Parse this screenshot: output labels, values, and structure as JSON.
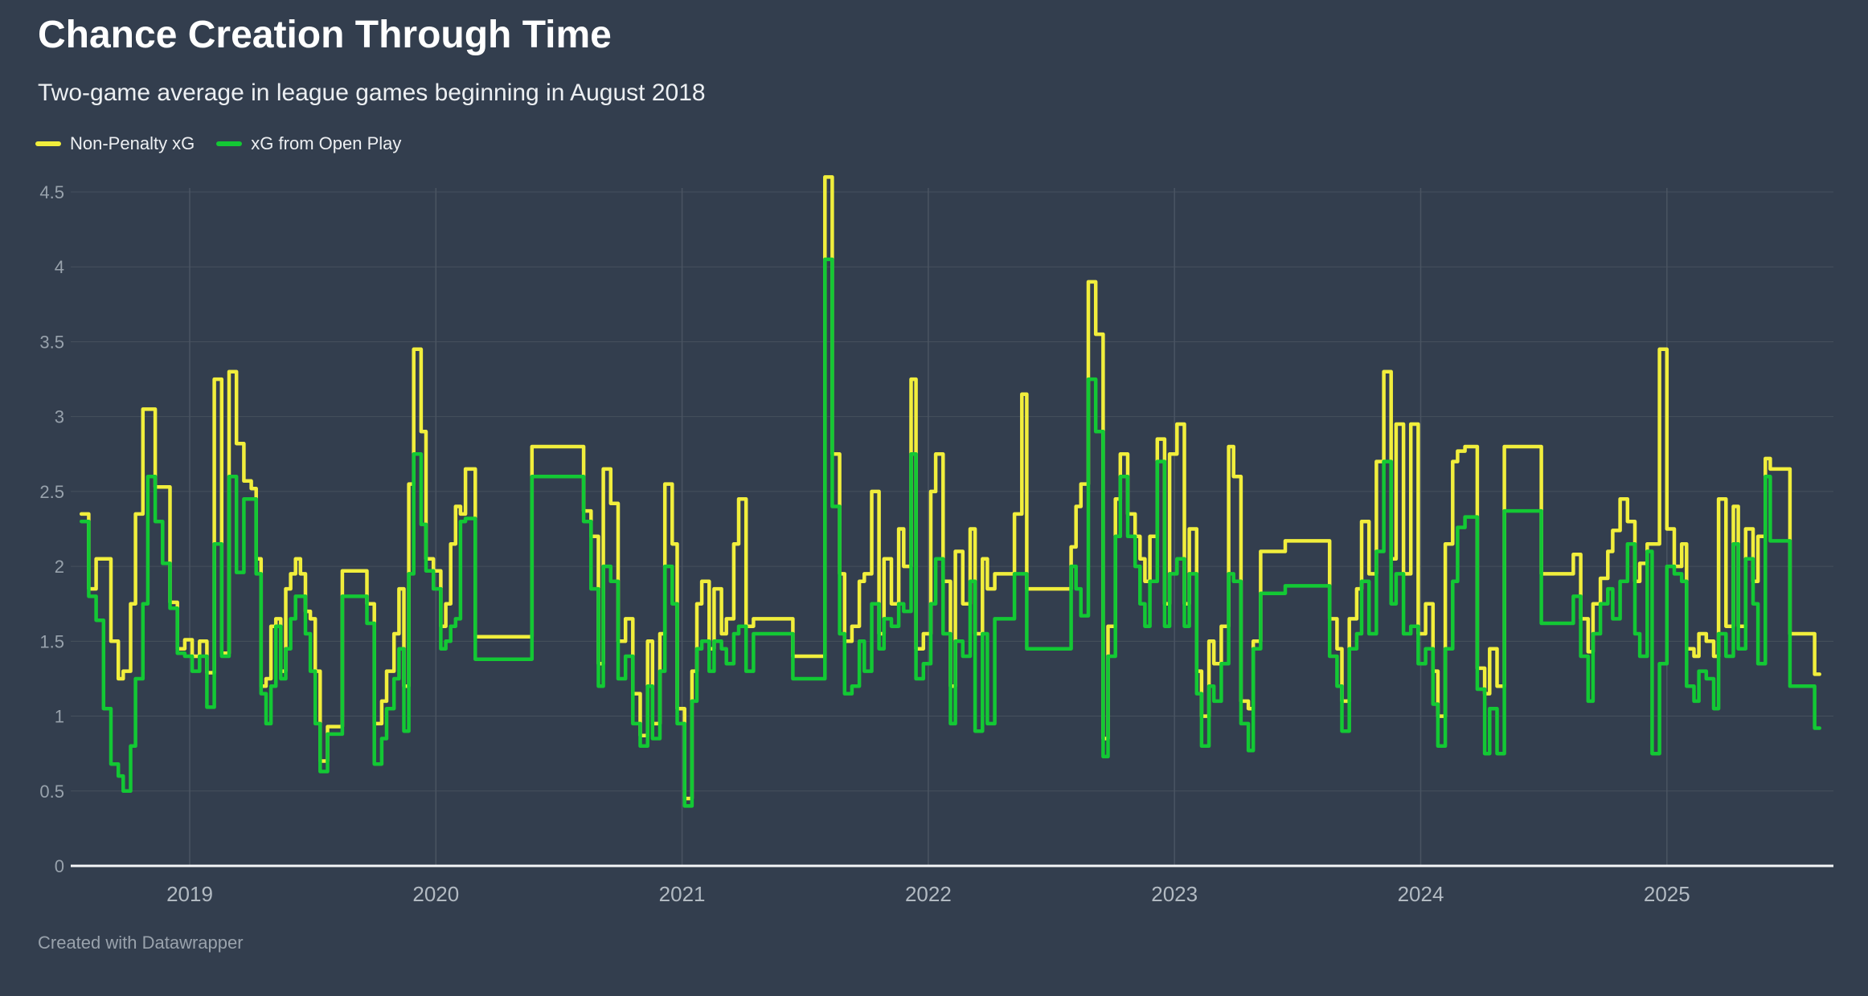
{
  "header": {
    "title": "Chance Creation Through Time",
    "subtitle": "Two-game average in league games beginning in August 2018"
  },
  "legend": {
    "position": "top-left",
    "items": [
      {
        "label": "Non-Penalty xG",
        "color": "#F1EE3C"
      },
      {
        "label": "xG from Open Play",
        "color": "#13C834"
      }
    ]
  },
  "footer": {
    "credit": "Created with Datawrapper"
  },
  "colors": {
    "background": "#333E4E",
    "gridline": "#46505D",
    "year_gridline": "#4A5462",
    "axis_line": "#F5F6F8",
    "y_tick_label": "#98A2AC",
    "x_tick_label": "#B2BAC2",
    "title": "#FFFFFF",
    "subtitle": "#ECEFF2"
  },
  "chart_data": {
    "type": "line",
    "step": true,
    "title": "Chance Creation Through Time",
    "subtitle": "Two-game average in league games beginning in August 2018",
    "xlabel": "",
    "ylabel": "",
    "grid": true,
    "legend_position": "top-left",
    "x_axis": {
      "range": [
        2018.55,
        2025.72
      ],
      "ticks": [
        2019,
        2020,
        2021,
        2022,
        2023,
        2024,
        2025
      ]
    },
    "y_axis": {
      "range": [
        0,
        4.5
      ],
      "ticks": [
        {
          "value": 0,
          "label": "0"
        },
        {
          "value": 0.5,
          "label": "0.5"
        },
        {
          "value": 1,
          "label": "1"
        },
        {
          "value": 1.5,
          "label": "1.5"
        },
        {
          "value": 2,
          "label": "2"
        },
        {
          "value": 2.5,
          "label": "2.5"
        },
        {
          "value": 3,
          "label": "3"
        },
        {
          "value": 3.5,
          "label": "3.5"
        },
        {
          "value": 4,
          "label": "4"
        },
        {
          "value": 4.5,
          "label": "4.5"
        }
      ]
    },
    "x_end": 2025.62,
    "series": [
      {
        "name": "Non-Penalty xG",
        "color": "#F1EE3C",
        "key": 1
      },
      {
        "name": "xG from Open Play",
        "color": "#13C834",
        "key": 2
      }
    ],
    "points_format": [
      "x_decimal_year",
      "non_penalty_xg",
      "xg_from_open_play"
    ],
    "points": [
      [
        2018.56,
        2.35,
        2.3
      ],
      [
        2018.59,
        1.85,
        1.8
      ],
      [
        2018.62,
        2.05,
        1.64
      ],
      [
        2018.65,
        2.05,
        1.05
      ],
      [
        2018.68,
        1.5,
        0.68
      ],
      [
        2018.71,
        1.25,
        0.6
      ],
      [
        2018.73,
        1.3,
        0.5
      ],
      [
        2018.76,
        1.75,
        0.8
      ],
      [
        2018.78,
        2.35,
        1.25
      ],
      [
        2018.81,
        3.05,
        1.75
      ],
      [
        2018.83,
        3.05,
        2.6
      ],
      [
        2018.86,
        2.53,
        2.3
      ],
      [
        2018.89,
        2.53,
        2.02
      ],
      [
        2018.92,
        1.76,
        1.72
      ],
      [
        2018.95,
        1.45,
        1.42
      ],
      [
        2018.98,
        1.51,
        1.4
      ],
      [
        2019.01,
        1.4,
        1.3
      ],
      [
        2019.04,
        1.5,
        1.4
      ],
      [
        2019.07,
        1.29,
        1.06
      ],
      [
        2019.1,
        3.25,
        2.15
      ],
      [
        2019.13,
        1.42,
        1.4
      ],
      [
        2019.16,
        3.3,
        2.6
      ],
      [
        2019.19,
        2.82,
        1.96
      ],
      [
        2019.22,
        2.57,
        2.45
      ],
      [
        2019.25,
        2.52,
        2.45
      ],
      [
        2019.27,
        2.05,
        1.95
      ],
      [
        2019.29,
        1.2,
        1.15
      ],
      [
        2019.31,
        1.25,
        0.95
      ],
      [
        2019.33,
        1.6,
        1.2
      ],
      [
        2019.35,
        1.65,
        1.6
      ],
      [
        2019.37,
        1.3,
        1.25
      ],
      [
        2019.39,
        1.85,
        1.45
      ],
      [
        2019.41,
        1.95,
        1.65
      ],
      [
        2019.43,
        2.05,
        1.8
      ],
      [
        2019.45,
        1.95,
        1.8
      ],
      [
        2019.47,
        1.7,
        1.55
      ],
      [
        2019.49,
        1.65,
        1.3
      ],
      [
        2019.51,
        1.3,
        0.95
      ],
      [
        2019.53,
        0.7,
        0.63
      ],
      [
        2019.56,
        0.93,
        0.88
      ],
      [
        2019.62,
        1.97,
        1.8
      ],
      [
        2019.72,
        1.75,
        1.62
      ],
      [
        2019.75,
        0.95,
        0.68
      ],
      [
        2019.78,
        1.1,
        0.85
      ],
      [
        2019.8,
        1.3,
        1.05
      ],
      [
        2019.83,
        1.55,
        1.25
      ],
      [
        2019.85,
        1.85,
        1.45
      ],
      [
        2019.87,
        1.2,
        0.9
      ],
      [
        2019.89,
        2.55,
        1.95
      ],
      [
        2019.91,
        3.45,
        2.75
      ],
      [
        2019.94,
        2.9,
        2.28
      ],
      [
        2019.96,
        2.05,
        1.97
      ],
      [
        2019.99,
        1.97,
        1.85
      ],
      [
        2020.02,
        1.6,
        1.45
      ],
      [
        2020.04,
        1.75,
        1.5
      ],
      [
        2020.06,
        2.15,
        1.6
      ],
      [
        2020.08,
        2.4,
        1.65
      ],
      [
        2020.1,
        2.35,
        2.3
      ],
      [
        2020.12,
        2.65,
        2.32
      ],
      [
        2020.16,
        1.53,
        1.38
      ],
      [
        2020.39,
        2.8,
        2.6
      ],
      [
        2020.6,
        2.37,
        2.3
      ],
      [
        2020.63,
        2.2,
        1.85
      ],
      [
        2020.66,
        1.35,
        1.2
      ],
      [
        2020.68,
        2.65,
        2.0
      ],
      [
        2020.71,
        2.42,
        1.9
      ],
      [
        2020.74,
        1.5,
        1.25
      ],
      [
        2020.77,
        1.65,
        1.4
      ],
      [
        2020.8,
        1.15,
        0.95
      ],
      [
        2020.83,
        0.87,
        0.8
      ],
      [
        2020.86,
        1.5,
        1.2
      ],
      [
        2020.88,
        0.95,
        0.85
      ],
      [
        2020.91,
        1.55,
        1.3
      ],
      [
        2020.93,
        2.55,
        2.0
      ],
      [
        2020.96,
        2.15,
        1.75
      ],
      [
        2020.98,
        1.05,
        0.95
      ],
      [
        2021.01,
        0.45,
        0.4
      ],
      [
        2021.04,
        1.3,
        1.1
      ],
      [
        2021.06,
        1.75,
        1.45
      ],
      [
        2021.08,
        1.9,
        1.5
      ],
      [
        2021.11,
        1.45,
        1.3
      ],
      [
        2021.13,
        1.85,
        1.5
      ],
      [
        2021.16,
        1.55,
        1.45
      ],
      [
        2021.18,
        1.65,
        1.35
      ],
      [
        2021.21,
        2.15,
        1.55
      ],
      [
        2021.23,
        2.45,
        1.6
      ],
      [
        2021.26,
        1.6,
        1.3
      ],
      [
        2021.29,
        1.65,
        1.55
      ],
      [
        2021.45,
        1.4,
        1.25
      ],
      [
        2021.58,
        4.6,
        4.05
      ],
      [
        2021.61,
        2.75,
        2.4
      ],
      [
        2021.64,
        1.95,
        1.55
      ],
      [
        2021.66,
        1.5,
        1.15
      ],
      [
        2021.69,
        1.6,
        1.2
      ],
      [
        2021.72,
        1.9,
        1.5
      ],
      [
        2021.74,
        1.95,
        1.3
      ],
      [
        2021.77,
        2.5,
        1.75
      ],
      [
        2021.8,
        1.55,
        1.45
      ],
      [
        2021.82,
        2.05,
        1.65
      ],
      [
        2021.85,
        1.75,
        1.6
      ],
      [
        2021.88,
        2.25,
        1.75
      ],
      [
        2021.9,
        2.0,
        1.7
      ],
      [
        2021.93,
        3.25,
        2.75
      ],
      [
        2021.95,
        1.45,
        1.25
      ],
      [
        2021.98,
        1.55,
        1.35
      ],
      [
        2022.01,
        2.5,
        1.75
      ],
      [
        2022.03,
        2.75,
        2.05
      ],
      [
        2022.06,
        1.9,
        1.55
      ],
      [
        2022.09,
        1.2,
        0.95
      ],
      [
        2022.11,
        2.1,
        1.5
      ],
      [
        2022.14,
        1.75,
        1.4
      ],
      [
        2022.17,
        2.25,
        1.9
      ],
      [
        2022.19,
        1.55,
        0.9
      ],
      [
        2022.22,
        2.05,
        1.55
      ],
      [
        2022.24,
        1.85,
        0.95
      ],
      [
        2022.27,
        1.95,
        1.65
      ],
      [
        2022.35,
        2.35,
        1.95
      ],
      [
        2022.38,
        3.15,
        1.95
      ],
      [
        2022.4,
        1.85,
        1.45
      ],
      [
        2022.58,
        2.13,
        2.0
      ],
      [
        2022.6,
        2.4,
        1.85
      ],
      [
        2022.62,
        2.55,
        1.67
      ],
      [
        2022.65,
        3.9,
        3.25
      ],
      [
        2022.68,
        3.55,
        2.9
      ],
      [
        2022.71,
        0.85,
        0.73
      ],
      [
        2022.73,
        1.6,
        1.4
      ],
      [
        2022.76,
        2.45,
        2.2
      ],
      [
        2022.78,
        2.75,
        2.6
      ],
      [
        2022.81,
        2.35,
        2.2
      ],
      [
        2022.84,
        2.2,
        2.0
      ],
      [
        2022.86,
        2.05,
        1.75
      ],
      [
        2022.88,
        1.9,
        1.6
      ],
      [
        2022.9,
        2.2,
        1.9
      ],
      [
        2022.93,
        2.85,
        2.7
      ],
      [
        2022.96,
        1.75,
        1.6
      ],
      [
        2022.98,
        2.75,
        1.95
      ],
      [
        2023.01,
        2.95,
        2.05
      ],
      [
        2023.04,
        1.75,
        1.6
      ],
      [
        2023.06,
        2.25,
        1.95
      ],
      [
        2023.09,
        1.3,
        1.15
      ],
      [
        2023.11,
        1.0,
        0.8
      ],
      [
        2023.14,
        1.5,
        1.2
      ],
      [
        2023.16,
        1.35,
        1.1
      ],
      [
        2023.19,
        1.6,
        1.35
      ],
      [
        2023.22,
        2.8,
        1.95
      ],
      [
        2023.24,
        2.6,
        1.9
      ],
      [
        2023.27,
        1.1,
        0.95
      ],
      [
        2023.3,
        1.05,
        0.77
      ],
      [
        2023.32,
        1.5,
        1.45
      ],
      [
        2023.35,
        2.1,
        1.82
      ],
      [
        2023.45,
        2.17,
        1.87
      ],
      [
        2023.63,
        1.65,
        1.4
      ],
      [
        2023.66,
        1.45,
        1.2
      ],
      [
        2023.68,
        1.1,
        0.9
      ],
      [
        2023.71,
        1.65,
        1.45
      ],
      [
        2023.74,
        1.85,
        1.55
      ],
      [
        2023.76,
        2.3,
        1.9
      ],
      [
        2023.79,
        1.95,
        1.55
      ],
      [
        2023.82,
        2.7,
        2.1
      ],
      [
        2023.85,
        3.3,
        2.7
      ],
      [
        2023.88,
        2.05,
        1.75
      ],
      [
        2023.9,
        2.95,
        1.95
      ],
      [
        2023.93,
        1.95,
        1.55
      ],
      [
        2023.96,
        2.95,
        1.6
      ],
      [
        2023.99,
        1.55,
        1.35
      ],
      [
        2024.02,
        1.75,
        1.45
      ],
      [
        2024.05,
        1.3,
        1.08
      ],
      [
        2024.07,
        1.0,
        0.8
      ],
      [
        2024.1,
        2.15,
        1.45
      ],
      [
        2024.13,
        2.7,
        1.9
      ],
      [
        2024.15,
        2.77,
        2.26
      ],
      [
        2024.18,
        2.8,
        2.33
      ],
      [
        2024.23,
        1.32,
        1.18
      ],
      [
        2024.26,
        1.15,
        0.75
      ],
      [
        2024.28,
        1.45,
        1.05
      ],
      [
        2024.31,
        1.2,
        0.75
      ],
      [
        2024.34,
        2.8,
        2.37
      ],
      [
        2024.49,
        1.95,
        1.62
      ],
      [
        2024.62,
        2.08,
        1.8
      ],
      [
        2024.65,
        1.65,
        1.4
      ],
      [
        2024.68,
        1.43,
        1.1
      ],
      [
        2024.7,
        1.75,
        1.55
      ],
      [
        2024.73,
        1.92,
        1.75
      ],
      [
        2024.76,
        2.1,
        1.85
      ],
      [
        2024.78,
        2.24,
        1.65
      ],
      [
        2024.81,
        2.45,
        1.9
      ],
      [
        2024.84,
        2.3,
        2.15
      ],
      [
        2024.87,
        1.9,
        1.55
      ],
      [
        2024.89,
        2.02,
        1.4
      ],
      [
        2024.92,
        2.15,
        2.1
      ],
      [
        2024.94,
        2.15,
        0.75
      ],
      [
        2024.97,
        3.45,
        1.35
      ],
      [
        2025.0,
        2.25,
        2.0
      ],
      [
        2025.03,
        2.0,
        1.95
      ],
      [
        2025.06,
        2.15,
        1.9
      ],
      [
        2025.08,
        1.45,
        1.2
      ],
      [
        2025.11,
        1.4,
        1.1
      ],
      [
        2025.13,
        1.55,
        1.3
      ],
      [
        2025.16,
        1.5,
        1.25
      ],
      [
        2025.19,
        1.4,
        1.05
      ],
      [
        2025.21,
        2.45,
        1.55
      ],
      [
        2025.24,
        1.6,
        1.4
      ],
      [
        2025.27,
        2.4,
        2.15
      ],
      [
        2025.29,
        1.6,
        1.45
      ],
      [
        2025.32,
        2.25,
        2.05
      ],
      [
        2025.35,
        1.9,
        1.75
      ],
      [
        2025.37,
        2.2,
        1.35
      ],
      [
        2025.4,
        2.72,
        2.6
      ],
      [
        2025.42,
        2.65,
        2.17
      ],
      [
        2025.5,
        1.55,
        1.2
      ],
      [
        2025.6,
        1.28,
        0.92
      ]
    ]
  }
}
